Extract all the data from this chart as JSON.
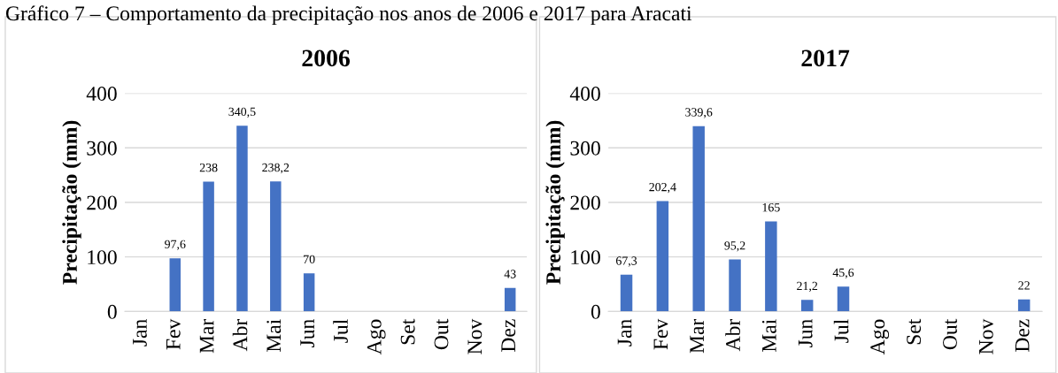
{
  "chart_data": [
    {
      "type": "bar",
      "title": "2006",
      "ylabel": "Precipitação (mm)",
      "categories": [
        "Jan",
        "Fev",
        "Mar",
        "Abr",
        "Mai",
        "Jun",
        "Jul",
        "Ago",
        "Set",
        "Out",
        "Nov",
        "Dez"
      ],
      "values": [
        0,
        97.6,
        238,
        340.5,
        238.2,
        70,
        0,
        0,
        0,
        0,
        0,
        43
      ],
      "value_labels": [
        null,
        "97,6",
        "238",
        "340,5",
        "238,2",
        "70",
        null,
        null,
        null,
        null,
        null,
        "43"
      ],
      "color": "#4472c4",
      "ylim": [
        0,
        400
      ],
      "yticks": [
        0,
        100,
        200,
        300,
        400
      ],
      "grid": "y",
      "annotations": [
        "Gráfico 7 – Comportamento da precipitação nos anos de 2006 e 2017 para Aracati"
      ]
    },
    {
      "type": "bar",
      "title": "2017",
      "ylabel": "Precipitação (mm)",
      "categories": [
        "Jan",
        "Fev",
        "Mar",
        "Abr",
        "Mai",
        "Jun",
        "Jul",
        "Ago",
        "Set",
        "Out",
        "Nov",
        "Dez"
      ],
      "values": [
        67.3,
        202.4,
        339.6,
        95.2,
        165,
        21.2,
        45.6,
        0,
        0,
        0,
        0,
        22
      ],
      "value_labels": [
        "67,3",
        "202,4",
        "339,6",
        "95,2",
        "165",
        "21,2",
        "45,6",
        null,
        null,
        null,
        null,
        "22"
      ],
      "color": "#4472c4",
      "ylim": [
        0,
        400
      ],
      "yticks": [
        0,
        100,
        200,
        300,
        400
      ],
      "grid": "y"
    }
  ]
}
